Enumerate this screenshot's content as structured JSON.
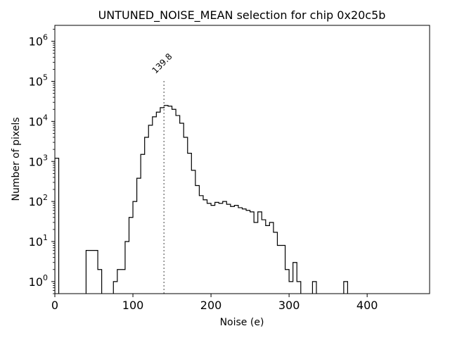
{
  "chart_data": {
    "type": "histogram",
    "title": "UNTUNED_NOISE_MEAN selection for chip 0x20c5b",
    "xlabel": "Noise (e)",
    "ylabel": "Number of pixels",
    "xlim": [
      0,
      480
    ],
    "ylim": [
      0.5,
      2500000
    ],
    "y_scale": "log",
    "x_ticks": [
      0,
      100,
      200,
      300,
      400
    ],
    "x_tick_labels": [
      "0",
      "100",
      "200",
      "300",
      "400"
    ],
    "y_ticks": [
      1,
      10,
      100,
      1000,
      10000,
      100000,
      1000000
    ],
    "y_tick_base": "10",
    "y_tick_exponents": [
      "0",
      "1",
      "2",
      "3",
      "4",
      "5",
      "6"
    ],
    "grid": false,
    "histogram_color": "#000000",
    "marker": {
      "value": 139.8,
      "label": "139.8",
      "color": "#808080",
      "line_top": 110000
    },
    "bin_edges": [
      0,
      5,
      10,
      15,
      20,
      25,
      30,
      35,
      40,
      45,
      50,
      55,
      60,
      65,
      70,
      75,
      80,
      85,
      90,
      95,
      100,
      105,
      110,
      115,
      120,
      125,
      130,
      135,
      140,
      145,
      150,
      155,
      160,
      165,
      170,
      175,
      180,
      185,
      190,
      195,
      200,
      205,
      210,
      215,
      220,
      225,
      230,
      235,
      240,
      245,
      250,
      255,
      260,
      265,
      270,
      275,
      280,
      285,
      290,
      295,
      300,
      305,
      310,
      315,
      320,
      325,
      330,
      335,
      340,
      345,
      350,
      355,
      360,
      365,
      370,
      375
    ],
    "counts": [
      1200,
      0,
      0,
      0,
      0,
      0,
      0,
      0,
      6,
      6,
      6,
      2,
      0,
      0,
      0,
      1,
      2,
      2,
      10,
      40,
      100,
      380,
      1500,
      4000,
      8000,
      13000,
      17000,
      22000,
      25000,
      24000,
      20000,
      14000,
      9000,
      4000,
      1600,
      600,
      250,
      140,
      110,
      90,
      80,
      95,
      90,
      100,
      85,
      75,
      80,
      70,
      65,
      60,
      55,
      30,
      55,
      35,
      25,
      30,
      17,
      8,
      8,
      2,
      1,
      3,
      1,
      0,
      0,
      0,
      1,
      0,
      0,
      0,
      0,
      0,
      0,
      0,
      1
    ]
  }
}
